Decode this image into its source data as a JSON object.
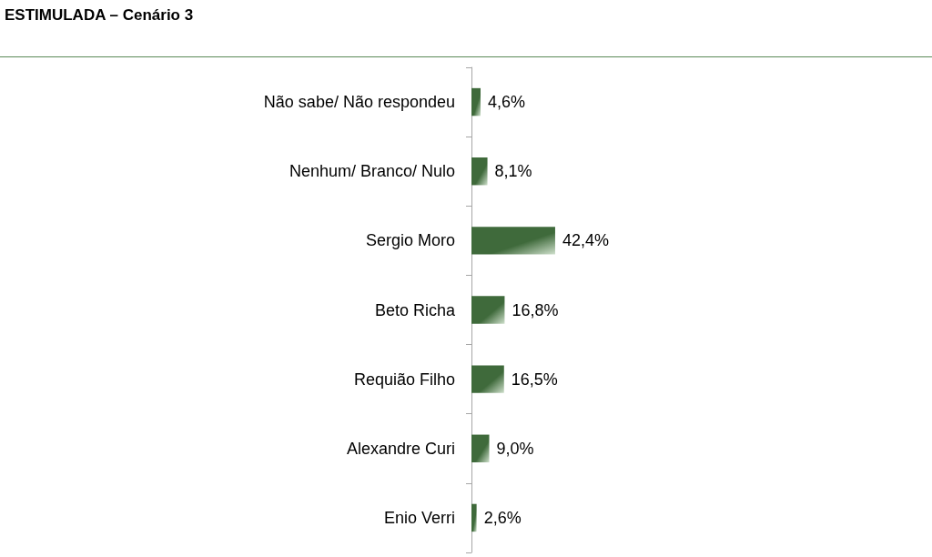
{
  "chart_data": {
    "type": "bar",
    "orientation": "horizontal",
    "title": "ESTIMULADA – Cenário 3",
    "categories": [
      "Não sabe/ Não respondeu",
      "Nenhum/ Branco/ Nulo",
      "Sergio Moro",
      "Beto Richa",
      "Requião Filho",
      "Alexandre Curi",
      "Enio Verri"
    ],
    "values": [
      4.6,
      8.1,
      42.4,
      16.8,
      16.5,
      9.0,
      2.6
    ],
    "value_labels": [
      "4,6%",
      "8,1%",
      "42,4%",
      "16,8%",
      "16,5%",
      "9,0%",
      "2,6%"
    ],
    "color": "#3f6a3b"
  }
}
